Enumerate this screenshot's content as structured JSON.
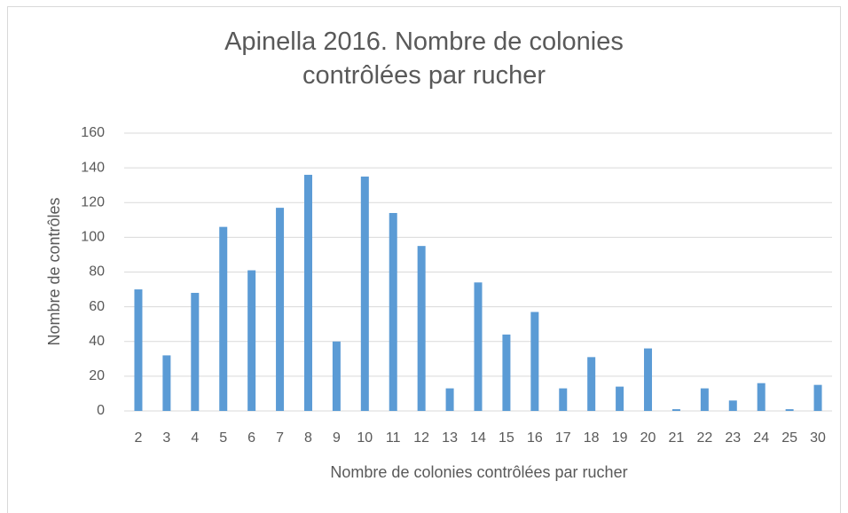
{
  "chart_data": {
    "type": "bar",
    "title": "Apinella 2016. Nombre de colonies contrôlées par rucher",
    "x_label": "Nombre de colonies contrôlées par rucher",
    "y_label": "Nombre de contrôles",
    "categories": [
      "2",
      "3",
      "4",
      "5",
      "6",
      "7",
      "8",
      "9",
      "10",
      "11",
      "12",
      "13",
      "14",
      "15",
      "16",
      "17",
      "18",
      "19",
      "20",
      "21",
      "22",
      "23",
      "24",
      "25",
      "30"
    ],
    "values": [
      70,
      32,
      68,
      106,
      81,
      117,
      136,
      40,
      135,
      114,
      95,
      13,
      74,
      44,
      57,
      13,
      31,
      14,
      36,
      1,
      13,
      6,
      16,
      1,
      15
    ],
    "color": "#5b9bd5",
    "ylim": [
      0,
      160
    ],
    "yticks": [
      0,
      20,
      40,
      60,
      80,
      100,
      120,
      140,
      160
    ],
    "grid": true
  }
}
